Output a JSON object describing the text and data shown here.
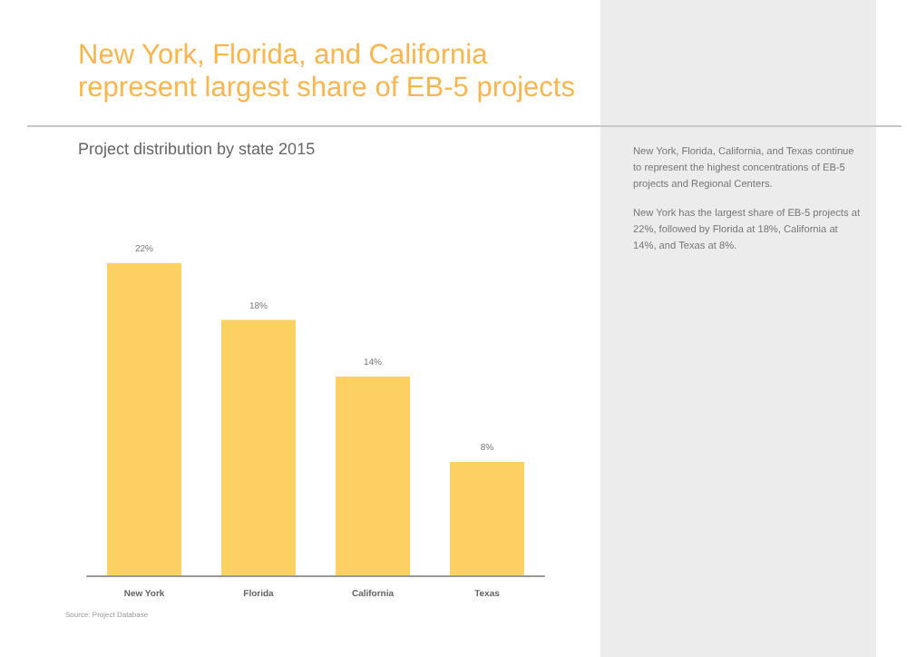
{
  "chart_data": {
    "type": "bar",
    "title": "New York, Florida, and California represent largest share of EB-5 projects",
    "subtitle": "Project distribution by state 2015",
    "categories": [
      "New York",
      "Florida",
      "California",
      "Texas"
    ],
    "values": [
      22,
      18,
      14,
      8
    ],
    "value_labels": [
      "22%",
      "18%",
      "14%",
      "8%"
    ],
    "color": "#fdd063",
    "annotations": [
      "New York, Florida, California, and Texas continue to represent the highest concentrations of EB-5 projects and Regional Centers.",
      "New York has the largest share of EB-5 projects at 22%, followed by Florida at 18%, California at 14%, and Texas at 8%.",
      "Source: Project Database"
    ]
  }
}
